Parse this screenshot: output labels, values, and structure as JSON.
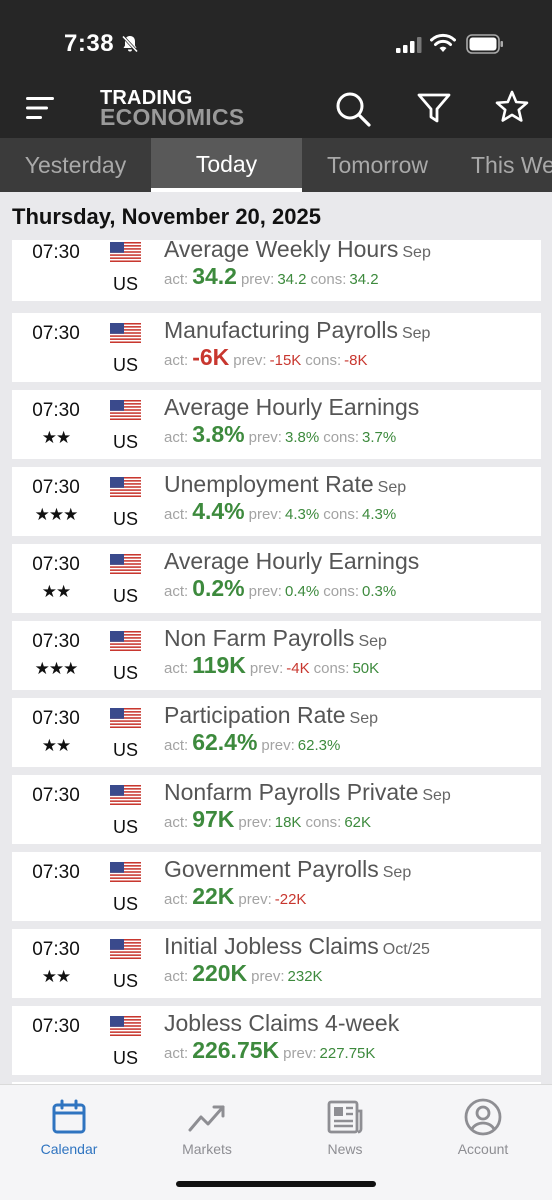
{
  "status": {
    "time": "7:38"
  },
  "header": {
    "logo_line1": "TRADING",
    "logo_line2": "ECONOMICS"
  },
  "tabs": [
    {
      "label": "Yesterday"
    },
    {
      "label": "Today",
      "active": true
    },
    {
      "label": "Tomorrow"
    },
    {
      "label": "This Week"
    }
  ],
  "date_heading": "Thursday, November 20, 2025",
  "labels": {
    "act": "act:",
    "prev": "prev:",
    "cons": "cons:"
  },
  "events": [
    {
      "time": "07:30",
      "stars": "",
      "country": "US",
      "name": "Average Weekly Hours",
      "period": "Sep",
      "actual": "34.2",
      "actual_color": "green",
      "previous": "34.2",
      "previous_color": "green",
      "consensus": "34.2",
      "consensus_color": "green"
    },
    {
      "time": "07:30",
      "stars": "",
      "country": "US",
      "name": "Manufacturing Payrolls",
      "period": "Sep",
      "actual": "-6K",
      "actual_color": "red",
      "previous": "-15K",
      "previous_color": "red",
      "consensus": "-8K",
      "consensus_color": "red"
    },
    {
      "time": "07:30",
      "stars": "★★",
      "country": "US",
      "name": "Average Hourly Earnings",
      "period": "",
      "actual": "3.8%",
      "actual_color": "green",
      "previous": "3.8%",
      "previous_color": "green",
      "consensus": "3.7%",
      "consensus_color": "green"
    },
    {
      "time": "07:30",
      "stars": "★★★",
      "country": "US",
      "name": "Unemployment Rate",
      "period": "Sep",
      "actual": "4.4%",
      "actual_color": "green",
      "previous": "4.3%",
      "previous_color": "green",
      "consensus": "4.3%",
      "consensus_color": "green"
    },
    {
      "time": "07:30",
      "stars": "★★",
      "country": "US",
      "name": "Average Hourly Earnings",
      "period": "",
      "actual": "0.2%",
      "actual_color": "green",
      "previous": "0.4%",
      "previous_color": "green",
      "consensus": "0.3%",
      "consensus_color": "green"
    },
    {
      "time": "07:30",
      "stars": "★★★",
      "country": "US",
      "name": "Non Farm Payrolls",
      "period": "Sep",
      "actual": "119K",
      "actual_color": "green",
      "previous": "-4K",
      "previous_color": "red",
      "consensus": "50K",
      "consensus_color": "green"
    },
    {
      "time": "07:30",
      "stars": "★★",
      "country": "US",
      "name": "Participation Rate",
      "period": "Sep",
      "actual": "62.4%",
      "actual_color": "green",
      "previous": "62.3%",
      "previous_color": "green",
      "consensus": "",
      "consensus_color": "green"
    },
    {
      "time": "07:30",
      "stars": "",
      "country": "US",
      "name": "Nonfarm Payrolls Private",
      "period": "Sep",
      "actual": "97K",
      "actual_color": "green",
      "previous": "18K",
      "previous_color": "green",
      "consensus": "62K",
      "consensus_color": "green"
    },
    {
      "time": "07:30",
      "stars": "",
      "country": "US",
      "name": "Government Payrolls",
      "period": "Sep",
      "actual": "22K",
      "actual_color": "green",
      "previous": "-22K",
      "previous_color": "red",
      "consensus": "",
      "consensus_color": "green"
    },
    {
      "time": "07:30",
      "stars": "★★",
      "country": "US",
      "name": "Initial Jobless Claims",
      "period": "Oct/25",
      "actual": "220K",
      "actual_color": "green",
      "previous": "232K",
      "previous_color": "green",
      "consensus": "",
      "consensus_color": "green"
    },
    {
      "time": "07:30",
      "stars": "",
      "country": "US",
      "name": "Jobless Claims 4-week",
      "period": "",
      "actual": "226.75K",
      "actual_color": "green",
      "previous": "227.75K",
      "previous_color": "green",
      "consensus": "",
      "consensus_color": "green"
    }
  ],
  "bottom_nav": [
    {
      "label": "Calendar",
      "icon": "calendar-icon",
      "active": true
    },
    {
      "label": "Markets",
      "icon": "chart-trend-icon"
    },
    {
      "label": "News",
      "icon": "newspaper-icon"
    },
    {
      "label": "Account",
      "icon": "account-icon"
    }
  ],
  "colors": {
    "green": "#3d8a3d",
    "red": "#c8372f",
    "accent": "#2f74c0",
    "header_bg": "#262626",
    "tab_bg": "#3b3b3b"
  }
}
